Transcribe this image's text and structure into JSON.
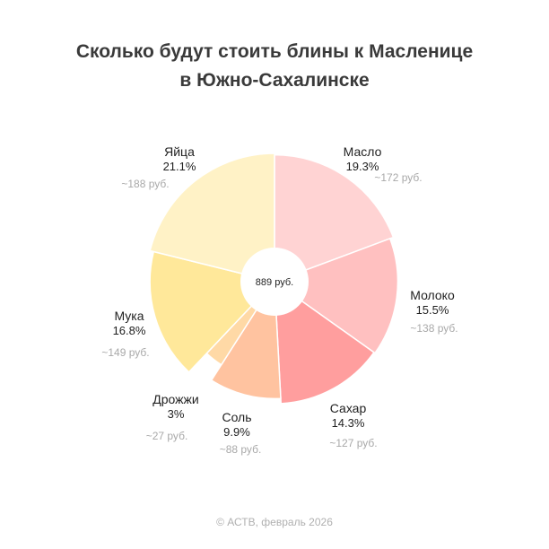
{
  "title_lines": [
    "Сколько будут стоить блины к Масленице",
    "в Южно-Сахалинске"
  ],
  "footer": "© АСТВ, февраль 2026",
  "chart_data": {
    "type": "pie",
    "subtype": "donut",
    "center_label": "889 руб.",
    "start_angle_deg": 0,
    "direction": "clockwise",
    "slices": [
      {
        "name": "Масло",
        "percent_label": "19.3%",
        "cost_label": "~172 руб.",
        "percent": 19.3,
        "cost": 172,
        "color": "#FFD3D3"
      },
      {
        "name": "Молоко",
        "percent_label": "15.5%",
        "cost_label": "~138 руб.",
        "percent": 15.5,
        "cost": 138,
        "color": "#FFC0C0"
      },
      {
        "name": "Сахар",
        "percent_label": "14.3%",
        "cost_label": "~127 руб.",
        "percent": 14.3,
        "cost": 127,
        "color": "#FF9E9E"
      },
      {
        "name": "Соль",
        "percent_label": "9.9%",
        "cost_label": "~88 руб.",
        "percent": 9.9,
        "cost": 88,
        "color": "#FFC3A0"
      },
      {
        "name": "Дрожжи",
        "percent_label": "3%",
        "cost_label": "~27 руб.",
        "percent": 3.0,
        "cost": 27,
        "color": "#FFD9A6"
      },
      {
        "name": "Мука",
        "percent_label": "16.8%",
        "cost_label": "~149 руб.",
        "percent": 16.8,
        "cost": 149,
        "color": "#FFE89A"
      },
      {
        "name": "Яйца",
        "percent_label": "21.1%",
        "cost_label": "~188 руб.",
        "percent": 21.1,
        "cost": 188,
        "color": "#FFF2C6"
      }
    ]
  }
}
